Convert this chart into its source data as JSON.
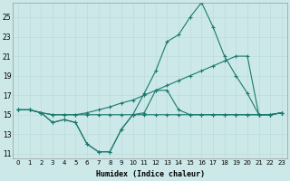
{
  "xlabel": "Humidex (Indice chaleur)",
  "background_color": "#cce8e8",
  "line_color": "#1a7a6e",
  "xlim": [
    -0.5,
    23.5
  ],
  "ylim": [
    10.5,
    26.5
  ],
  "yticks": [
    11,
    13,
    15,
    17,
    19,
    21,
    23,
    25
  ],
  "xticks": [
    0,
    1,
    2,
    3,
    4,
    5,
    6,
    7,
    8,
    9,
    10,
    11,
    12,
    13,
    14,
    15,
    16,
    17,
    18,
    19,
    20,
    21,
    22,
    23
  ],
  "series1_x": [
    0,
    1,
    2,
    3,
    4,
    5,
    6,
    7,
    8,
    9,
    10,
    11,
    12,
    13,
    14,
    15,
    16,
    17,
    18,
    19,
    20,
    21,
    22,
    23
  ],
  "series1_y": [
    15.5,
    15.5,
    15.2,
    15.0,
    15.0,
    15.0,
    15.0,
    15.0,
    15.0,
    15.0,
    15.0,
    15.0,
    15.0,
    15.0,
    15.0,
    15.0,
    15.0,
    15.0,
    15.0,
    15.0,
    15.0,
    15.0,
    15.0,
    15.2
  ],
  "series2_x": [
    0,
    1,
    2,
    3,
    4,
    5,
    6,
    7,
    8,
    9,
    10,
    11,
    12,
    13,
    14,
    15,
    16,
    17,
    18,
    19,
    20,
    21,
    22,
    23
  ],
  "series2_y": [
    15.5,
    15.5,
    15.2,
    14.2,
    14.5,
    14.2,
    12.0,
    11.2,
    11.2,
    13.5,
    15.0,
    15.2,
    17.5,
    17.5,
    15.5,
    15.0,
    15.0,
    15.0,
    15.0,
    15.0,
    15.0,
    15.0,
    15.0,
    15.2
  ],
  "series3_x": [
    0,
    1,
    2,
    3,
    4,
    5,
    6,
    7,
    8,
    9,
    10,
    11,
    12,
    13,
    14,
    15,
    16,
    17,
    18,
    19,
    20,
    21,
    22,
    23
  ],
  "series3_y": [
    15.5,
    15.5,
    15.2,
    14.2,
    14.5,
    14.2,
    12.0,
    11.2,
    11.2,
    13.5,
    15.0,
    17.2,
    19.5,
    22.5,
    23.2,
    25.0,
    26.5,
    24.0,
    21.0,
    19.0,
    17.2,
    15.0,
    15.0,
    15.2
  ],
  "series4_x": [
    0,
    1,
    2,
    3,
    4,
    5,
    6,
    7,
    8,
    9,
    10,
    11,
    12,
    13,
    14,
    15,
    16,
    17,
    18,
    19,
    20,
    21,
    22,
    23
  ],
  "series4_y": [
    15.5,
    15.5,
    15.2,
    15.0,
    15.0,
    15.0,
    15.2,
    15.5,
    15.8,
    16.2,
    16.5,
    17.0,
    17.5,
    18.0,
    18.5,
    19.0,
    19.5,
    20.0,
    20.5,
    21.0,
    21.0,
    15.0,
    15.0,
    15.2
  ]
}
